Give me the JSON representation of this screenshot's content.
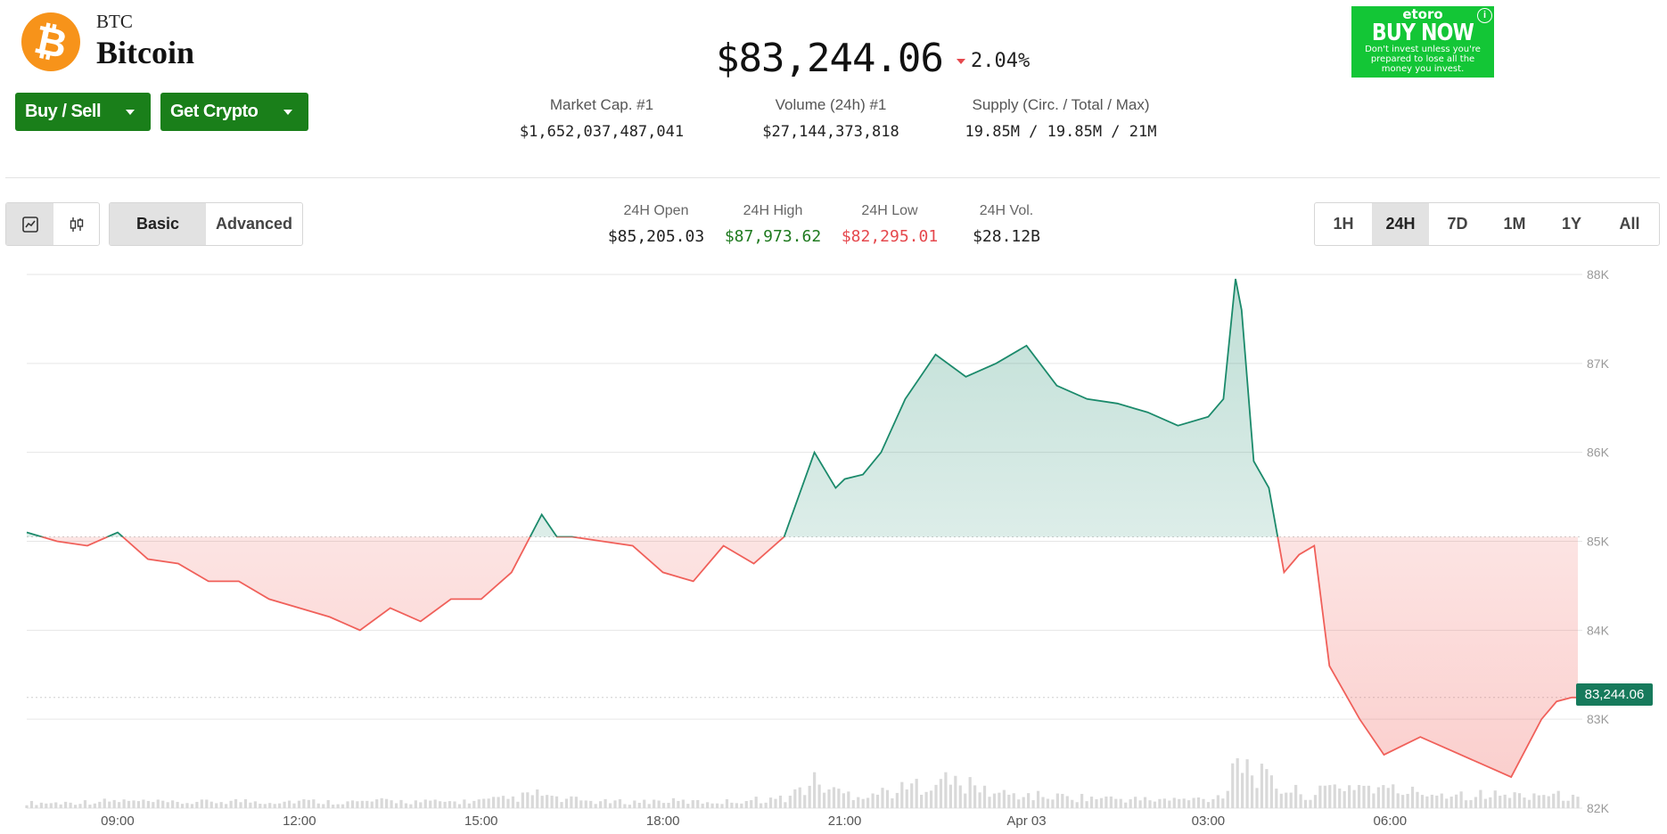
{
  "coin": {
    "icon": "bitcoin-logo-icon",
    "icon_glyph": "₿",
    "symbol": "BTC",
    "name": "Bitcoin",
    "brand_color": "#f7931a"
  },
  "actions": {
    "buy_sell_label": "Buy / Sell",
    "get_crypto_label": "Get Crypto",
    "color": "#1a7f1a"
  },
  "price": {
    "value": "$83,244.06",
    "change": "2.04%",
    "direction": "down",
    "down_color": "#e5484d"
  },
  "stats": [
    {
      "label": "Market Cap. #1",
      "value": "$1,652,037,487,041"
    },
    {
      "label": "Volume (24h) #1",
      "value": "$27,144,373,818"
    },
    {
      "label": "Supply (Circ. / Total / Max)",
      "value": "19.85M / 19.85M / 21M"
    }
  ],
  "ad": {
    "brand": "etoro",
    "cta": "BUY NOW",
    "disclaimer": "Don't invest unless you're prepared to lose all the money you invest.",
    "info_icon": "info-icon",
    "info_glyph": "i",
    "background": "#13c636"
  },
  "toolbar": {
    "chart_type_icons": [
      "line-chart-icon",
      "candlestick-icon"
    ],
    "modes": [
      "Basic",
      "Advanced"
    ],
    "active_mode": "Basic",
    "ranges": [
      "1H",
      "24H",
      "7D",
      "1M",
      "1Y",
      "All"
    ],
    "active_range": "24H"
  },
  "ohlc": [
    {
      "label": "24H Open",
      "value": "$85,205.03",
      "color": "#222222"
    },
    {
      "label": "24H High",
      "value": "$87,973.62",
      "color": "#1f7a1f"
    },
    {
      "label": "24H Low",
      "value": "$82,295.01",
      "color": "#e5484d"
    },
    {
      "label": "24H Vol.",
      "value": "$28.12B",
      "color": "#222222"
    }
  ],
  "chart_data": {
    "type": "area",
    "y_unit": "USD",
    "ylim": [
      82000,
      88000
    ],
    "y_ticks": [
      "88K",
      "87K",
      "86K",
      "85K",
      "84K",
      "83K",
      "82K"
    ],
    "x_ticks": [
      "09:00",
      "12:00",
      "15:00",
      "18:00",
      "21:00",
      "Apr 03",
      "03:00",
      "06:00"
    ],
    "baseline": 85050,
    "current_price_label": "83,244.06",
    "up_color": "#1b8a6b",
    "down_color": "#f0605a",
    "grid": true,
    "x_hours": [
      7.5,
      8.0,
      8.5,
      9.0,
      9.5,
      10.0,
      10.5,
      11.0,
      11.5,
      12.0,
      12.5,
      13.0,
      13.5,
      14.0,
      14.5,
      15.0,
      15.5,
      16.0,
      16.25,
      16.5,
      17.0,
      17.5,
      18.0,
      18.5,
      19.0,
      19.5,
      20.0,
      20.5,
      20.85,
      21.0,
      21.3,
      21.6,
      22.0,
      22.5,
      23.0,
      23.5,
      24.0,
      24.5,
      25.0,
      25.5,
      26.0,
      26.5,
      27.0,
      27.25,
      27.45,
      27.55,
      27.75,
      28.0,
      28.25,
      28.5,
      28.75,
      29.0,
      29.5,
      29.9,
      30.2,
      30.5,
      31.0,
      31.5,
      32.0,
      32.5,
      32.75,
      33.0,
      33.1
    ],
    "values": [
      85100,
      85000,
      84950,
      85100,
      84800,
      84750,
      84550,
      84550,
      84350,
      84250,
      84150,
      84000,
      84250,
      84100,
      84350,
      84350,
      84650,
      85300,
      85050,
      85050,
      85000,
      84950,
      84650,
      84550,
      84950,
      84750,
      85050,
      86000,
      85600,
      85700,
      85750,
      86000,
      86600,
      87100,
      86850,
      87000,
      87200,
      86750,
      86600,
      86550,
      86450,
      86300,
      86400,
      86600,
      87950,
      87600,
      85900,
      85600,
      84650,
      84850,
      84950,
      83600,
      83000,
      82600,
      82700,
      82800,
      82650,
      82500,
      82350,
      83000,
      83200,
      83244,
      83244
    ],
    "volume_rel": [
      0.05,
      0.05,
      0.06,
      0.07,
      0.06,
      0.05,
      0.06,
      0.07,
      0.06,
      0.07,
      0.06,
      0.06,
      0.07,
      0.06,
      0.06,
      0.07,
      0.09,
      0.14,
      0.08,
      0.08,
      0.06,
      0.06,
      0.07,
      0.06,
      0.06,
      0.08,
      0.09,
      0.25,
      0.16,
      0.14,
      0.13,
      0.15,
      0.18,
      0.28,
      0.22,
      0.14,
      0.12,
      0.11,
      0.1,
      0.09,
      0.08,
      0.08,
      0.09,
      0.12,
      0.55,
      0.45,
      0.35,
      0.25,
      0.18,
      0.15,
      0.12,
      0.2,
      0.22,
      0.18,
      0.16,
      0.15,
      0.14,
      0.13,
      0.12,
      0.14,
      0.12,
      0.1,
      0.08
    ]
  }
}
